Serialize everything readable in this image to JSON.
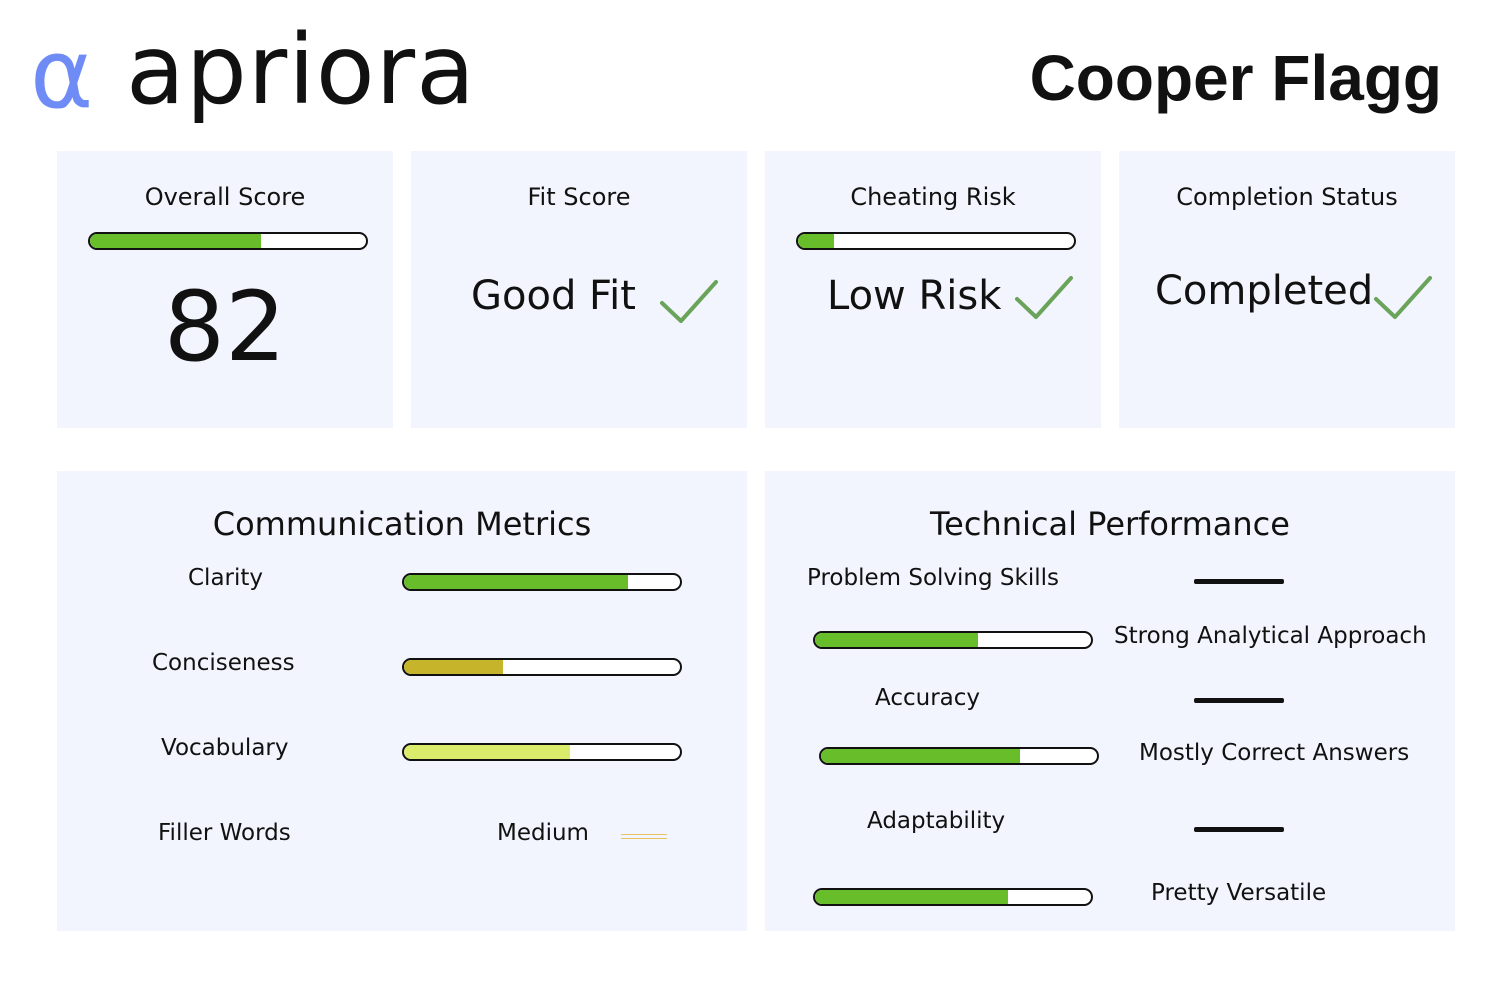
{
  "header": {
    "logo_mark": "α",
    "logo_word": "apriora",
    "candidate_name": "Cooper Flagg"
  },
  "colors": {
    "brand": "#6f8cf6",
    "card_bg": "#f2f5fd",
    "green": "#68bd2b",
    "olive": "#c6b52a",
    "lime": "#dbec6c",
    "check": "#6aa35a",
    "filler_line": "#e8c25a"
  },
  "summary": {
    "overall": {
      "title": "Overall Score",
      "value": "82",
      "progress": 0.62
    },
    "fit": {
      "title": "Fit Score",
      "value": "Good Fit",
      "icon": "check-icon"
    },
    "cheating": {
      "title": "Cheating Risk",
      "value": "Low Risk",
      "progress": 0.13,
      "icon": "check-icon"
    },
    "completion": {
      "title": "Completion Status",
      "value": "Completed",
      "icon": "check-icon"
    }
  },
  "communication": {
    "title": "Communication Metrics",
    "metrics": [
      {
        "label": "Clarity",
        "progress": 0.81
      },
      {
        "label": "Conciseness",
        "progress": 0.36
      },
      {
        "label": "Vocabulary",
        "progress": 0.6
      },
      {
        "label": "Filler Words",
        "value": "Medium"
      }
    ]
  },
  "technical": {
    "title": "Technical Performance",
    "metrics": [
      {
        "label": "Problem Solving Skills",
        "progress": 0.59,
        "comment": "Strong Analytical Approach"
      },
      {
        "label": "Accuracy",
        "progress": 0.72,
        "comment": "Mostly Correct Answers"
      },
      {
        "label": "Adaptability",
        "progress": 0.7,
        "comment": "Pretty Versatile"
      }
    ]
  }
}
